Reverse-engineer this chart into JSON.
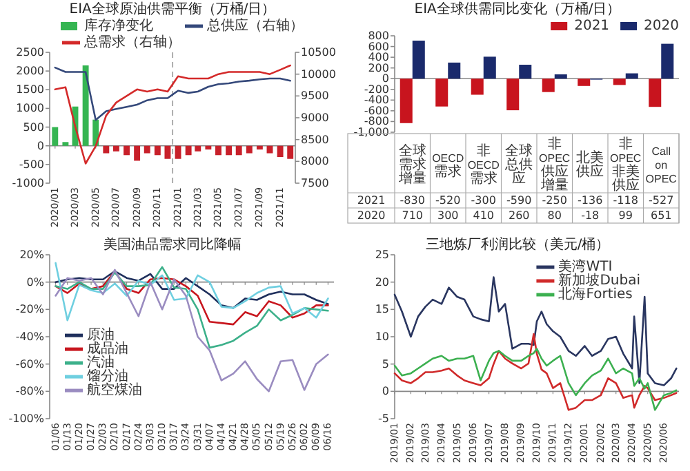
{
  "chart_data": [
    {
      "type": "bar",
      "title": "EIA全球原油供需平衡（万桶/日）",
      "legend": "top",
      "x": [
        "2020-01",
        "2020-02",
        "2020-03",
        "2020-04",
        "2020-05",
        "2020-06",
        "2020-07",
        "2020-08",
        "2020-09",
        "2020-10",
        "2020-11",
        "2020-12",
        "2021-01",
        "2021-02",
        "2021-03",
        "2021-04",
        "2021-05",
        "2021-06",
        "2021-07",
        "2021-08",
        "2021-09",
        "2021-10",
        "2021-11",
        "2021-12"
      ],
      "xlim": [
        "2019-12-16",
        "2021-12-16"
      ],
      "xticks": [
        {
          "value": "2020-01",
          "label": "2020/01"
        },
        {
          "value": "2020-03",
          "label": "2020/03"
        },
        {
          "value": "2020-05",
          "label": "2020/05"
        },
        {
          "value": "2020-07",
          "label": "2020/07"
        },
        {
          "value": "2020-09",
          "label": "2020/09"
        },
        {
          "value": "2020-11",
          "label": "2020/11"
        },
        {
          "value": "2021-01",
          "label": "2021/01"
        },
        {
          "value": "2021-03",
          "label": "2021/03"
        },
        {
          "value": "2021-05",
          "label": "2021/05"
        },
        {
          "value": "2021-07",
          "label": "2021/07"
        },
        {
          "value": "2021-09",
          "label": "2021/09"
        },
        {
          "value": "2021-11",
          "label": "2021/11"
        }
      ],
      "ylim": [
        -1000,
        2500
      ],
      "yticks": [
        -1000,
        -500,
        0,
        500,
        1000,
        1500,
        2000,
        2500
      ],
      "y2lim": [
        7500,
        10500
      ],
      "y2ticks": [
        7500,
        8000,
        8500,
        9000,
        9500,
        10000,
        10500
      ],
      "ref_lines": [
        {
          "axis": "x",
          "value": "2020-12-16",
          "color": "#999999",
          "line_style": "dashed"
        }
      ],
      "series": [
        {
          "name": "库存净变化",
          "type": "bar",
          "color": "#35b552",
          "colors": [
            "#35b552",
            "#35b552",
            "#35b552",
            "#35b552",
            "#35b552",
            "#c8202a",
            "#c8202a",
            "#c8202a",
            "#c8202a",
            "#c8202a",
            "#c8202a",
            "#c8202a",
            "#c8202a",
            "#c8202a",
            "#c8202a",
            "#c8202a",
            "#c8202a",
            "#c8202a",
            "#c8202a",
            "#c8202a",
            "#c8202a",
            "#c8202a",
            "#c8202a",
            "#c8202a"
          ],
          "values": [
            500,
            100,
            1050,
            2150,
            700,
            -200,
            -150,
            -250,
            -400,
            -200,
            -250,
            -350,
            -350,
            -250,
            -150,
            -100,
            -250,
            -250,
            -250,
            -200,
            -100,
            -200,
            -300,
            -350
          ]
        },
        {
          "name": "总供应（右轴）",
          "type": "line",
          "axis": "y2",
          "color": "#34487a",
          "values": [
            10150,
            10050,
            10050,
            10050,
            8950,
            9150,
            9200,
            9250,
            9300,
            9400,
            9450,
            9450,
            9620,
            9570,
            9600,
            9710,
            9770,
            9790,
            9830,
            9850,
            9880,
            9900,
            9900,
            9850
          ]
        },
        {
          "name": "总需求（右轴）",
          "type": "line",
          "axis": "y2",
          "color": "#d42a2a",
          "values": [
            9650,
            9700,
            8800,
            7950,
            8350,
            9050,
            9350,
            9500,
            9650,
            9600,
            9650,
            9600,
            9950,
            9900,
            9900,
            9900,
            10000,
            10050,
            10050,
            10050,
            10050,
            10000,
            10100,
            10200
          ]
        }
      ]
    },
    {
      "type": "bar",
      "title": "EIA全球供需同比变化（万桶/日）",
      "legend": "top right",
      "data_labels": true,
      "categories": [
        "全球需求增量",
        "OECD需求",
        "非OECD需求",
        "全球总供应",
        "非OPEC供应增量",
        "北美供应",
        "非OPEC非美供应",
        "Call on OPEC"
      ],
      "ylim": [
        -1000,
        800
      ],
      "yticks": [
        {
          "value": -1000,
          "label": "-1,000"
        },
        -800,
        -600,
        -400,
        -200,
        0,
        200,
        400,
        600,
        800
      ],
      "series": [
        {
          "name": "2021",
          "color": "#c8141e",
          "values": [
            -830,
            -520,
            -300,
            -590,
            -250,
            -136,
            -118,
            -527
          ]
        },
        {
          "name": "2020",
          "color": "#1a2a6c",
          "values": [
            710,
            300,
            410,
            260,
            80,
            -18,
            99,
            651
          ]
        }
      ]
    },
    {
      "type": "line",
      "title": "美国油品需求同比降幅",
      "legend": "left",
      "categories": [
        "01/06",
        "01/13",
        "01/20",
        "01/27",
        "02/03",
        "02/10",
        "02/17",
        "02/24",
        "03/03",
        "03/10",
        "03/17",
        "03/24",
        "03/31",
        "04/07",
        "04/14",
        "04/21",
        "04/28",
        "05/05",
        "05/12",
        "05/19",
        "05/26",
        "06/02",
        "06/09",
        "06/16"
      ],
      "ylim": [
        -100,
        20
      ],
      "yticks": [
        {
          "value": -100,
          "label": "-100%"
        },
        {
          "value": -80,
          "label": "-80%"
        },
        {
          "value": -60,
          "label": "-60%"
        },
        {
          "value": -40,
          "label": "-40%"
        },
        {
          "value": -20,
          "label": "-20%"
        },
        {
          "value": 0,
          "label": "0%"
        },
        {
          "value": 20,
          "label": "20%"
        }
      ],
      "series": [
        {
          "name": "原油",
          "color": "#1f2f5c",
          "values": [
            0,
            2,
            3,
            2,
            2,
            8,
            3,
            1,
            6,
            -5,
            -5,
            3,
            -3,
            -9,
            -17,
            -19,
            -12,
            -13,
            -9,
            -7,
            -9,
            -9,
            -13,
            -16
          ]
        },
        {
          "name": "成品油",
          "color": "#c8161e",
          "values": [
            -3,
            -8,
            -1,
            -5,
            -3,
            8,
            -5,
            -8,
            2,
            3,
            2,
            -3,
            -10,
            -29,
            -30,
            -31,
            -22,
            -25,
            -14,
            -17,
            -26,
            -23,
            -17,
            -17
          ]
        },
        {
          "name": "汽油",
          "color": "#3cb08a",
          "values": [
            -3,
            -5,
            0,
            -5,
            -5,
            7,
            -3,
            -3,
            -2,
            11,
            -4,
            -5,
            -20,
            -48,
            -46,
            -43,
            -37,
            -32,
            -20,
            -28,
            -24,
            -19,
            -20,
            -21
          ]
        },
        {
          "name": "馏分油",
          "color": "#6fcfe0",
          "values": [
            14,
            -28,
            -2,
            -6,
            -8,
            -1,
            -10,
            1,
            -2,
            5,
            -13,
            -12,
            5,
            0,
            -18,
            -19,
            -14,
            -8,
            -4,
            -3,
            -23,
            -19,
            -26,
            -12
          ]
        },
        {
          "name": "航空煤油",
          "color": "#9a8cc0",
          "values": [
            -10,
            3,
            1,
            3,
            -9,
            9,
            -8,
            -25,
            0,
            -20,
            2,
            -10,
            -40,
            -50,
            -72,
            -67,
            -58,
            -71,
            -80,
            -58,
            -57,
            -79,
            -60,
            -53
          ]
        }
      ]
    },
    {
      "type": "line",
      "title": "三地炼厂利润比较（美元/桶）",
      "legend": "top right",
      "x": [
        "2019-01-01",
        "2019-01-15",
        "2019-02-01",
        "2019-02-15",
        "2019-03-01",
        "2019-03-15",
        "2019-04-01",
        "2019-04-15",
        "2019-05-01",
        "2019-05-15",
        "2019-06-01",
        "2019-06-15",
        "2019-07-01",
        "2019-07-10",
        "2019-07-20",
        "2019-08-01",
        "2019-08-15",
        "2019-09-01",
        "2019-09-15",
        "2019-09-25",
        "2019-10-01",
        "2019-10-10",
        "2019-10-20",
        "2019-11-01",
        "2019-11-15",
        "2019-12-01",
        "2019-12-15",
        "2020-01-01",
        "2020-01-15",
        "2020-02-01",
        "2020-02-15",
        "2020-03-01",
        "2020-03-15",
        "2020-04-01",
        "2020-04-05",
        "2020-04-15",
        "2020-04-25",
        "2020-05-01",
        "2020-05-15",
        "2020-06-01",
        "2020-06-15",
        "2020-06-25"
      ],
      "xlim": [
        "2019-01-01",
        "2020-06-30"
      ],
      "xticks": [
        {
          "value": "2019-01",
          "label": "2019/01"
        },
        {
          "value": "2019-02",
          "label": "2019/02"
        },
        {
          "value": "2019-03",
          "label": "2019/03"
        },
        {
          "value": "2019-04",
          "label": "2019/04"
        },
        {
          "value": "2019-05",
          "label": "2019/05"
        },
        {
          "value": "2019-06",
          "label": "2019/06"
        },
        {
          "value": "2019-07",
          "label": "2019/07"
        },
        {
          "value": "2019-08",
          "label": "2019/08"
        },
        {
          "value": "2019-09",
          "label": "2019/09"
        },
        {
          "value": "2019-10",
          "label": "2019/10"
        },
        {
          "value": "2019-11",
          "label": "2019/11"
        },
        {
          "value": "2019-12",
          "label": "2019/12"
        },
        {
          "value": "2020-01",
          "label": "2020/01"
        },
        {
          "value": "2020-02",
          "label": "2020/02"
        },
        {
          "value": "2020-03",
          "label": "2020/03"
        },
        {
          "value": "2020-04",
          "label": "2020/04"
        },
        {
          "value": "2020-05",
          "label": "2020/05"
        },
        {
          "value": "2020-06",
          "label": "2020/06"
        }
      ],
      "ylim": [
        -5,
        25
      ],
      "yticks": [
        -5,
        0,
        5,
        10,
        15,
        20,
        25
      ],
      "series": [
        {
          "name": "美湾WTI",
          "color": "#2a3660",
          "values": [
            17.7,
            14.6,
            10,
            13.7,
            15.5,
            16.8,
            16,
            19,
            17.3,
            16.8,
            13.7,
            13.2,
            12.8,
            20.9,
            14.6,
            16,
            7.8,
            8.7,
            8.7,
            8.5,
            12.8,
            14.6,
            12.3,
            11,
            10,
            7.4,
            6.5,
            8.3,
            6.5,
            7.4,
            9.6,
            10,
            6.9,
            4.2,
            13.7,
            1.5,
            17.3,
            3.3,
            1.5,
            1.1,
            2.4,
            4.2
          ]
        },
        {
          "name": "新加坡Dubai",
          "color": "#d02a2a",
          "values": [
            3.3,
            2,
            1.5,
            2.4,
            3.5,
            3.5,
            3.8,
            4.2,
            2.9,
            2,
            1.5,
            1.1,
            2.4,
            5,
            7.4,
            6,
            5.1,
            4.2,
            5.1,
            10.5,
            6.9,
            4,
            3.3,
            0.6,
            1.5,
            -3.4,
            -3,
            -1.6,
            -1.6,
            -0.7,
            2.4,
            1.5,
            -1.2,
            -0.7,
            -3,
            -0.7,
            1,
            0.6,
            -1.6,
            -1.2,
            -0.7,
            -0.3
          ]
        },
        {
          "name": "北海Forties",
          "color": "#3cb050",
          "values": [
            4.7,
            2.9,
            3.3,
            4.2,
            5.1,
            6,
            6.5,
            5.6,
            6,
            6,
            6.5,
            2,
            5.6,
            7,
            7.4,
            6.5,
            5.6,
            5.6,
            6.5,
            7,
            7.8,
            6,
            4.7,
            5.6,
            6.5,
            1.5,
            -0.7,
            1.5,
            2.9,
            3.8,
            6,
            3.3,
            4.2,
            3.3,
            1,
            2.4,
            0.5,
            1.5,
            -3.4,
            -0.7,
            -0.3,
            0.2
          ]
        }
      ]
    }
  ]
}
